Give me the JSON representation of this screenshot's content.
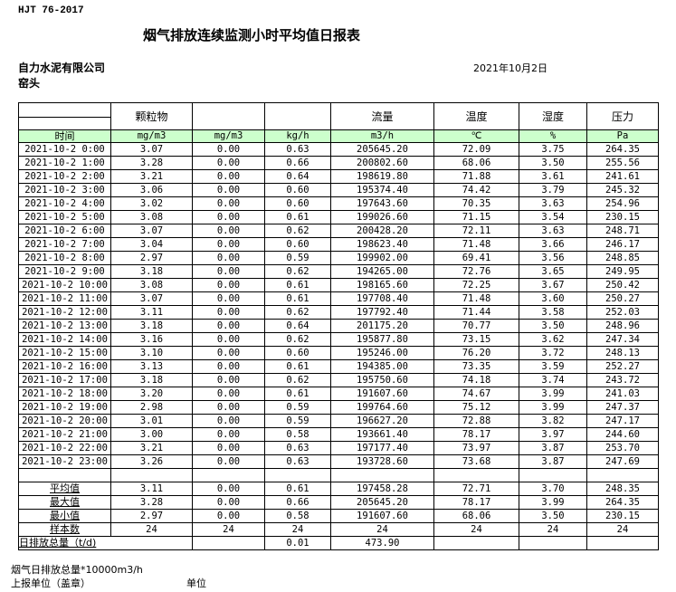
{
  "standard": "HJT  76-2017",
  "title": "烟气排放连续监测小时平均值日报表",
  "company": "自力水泥有限公司",
  "location": "窑头",
  "date": "2021年10月2日",
  "headers": [
    "",
    "颗粒物",
    "",
    "",
    "流量",
    "温度",
    "湿度",
    "压力"
  ],
  "units": [
    "时间",
    "mg/m3",
    "mg/m3",
    "kg/h",
    "m3/h",
    "℃",
    "%",
    "Pa"
  ],
  "rows": [
    [
      "2021-10-2 0:00",
      "3.07",
      "0.00",
      "0.63",
      "205645.20",
      "72.09",
      "3.75",
      "264.35"
    ],
    [
      "2021-10-2 1:00",
      "3.28",
      "0.00",
      "0.66",
      "200802.60",
      "68.06",
      "3.50",
      "255.56"
    ],
    [
      "2021-10-2 2:00",
      "3.21",
      "0.00",
      "0.64",
      "198619.80",
      "71.88",
      "3.61",
      "241.61"
    ],
    [
      "2021-10-2 3:00",
      "3.06",
      "0.00",
      "0.60",
      "195374.40",
      "74.42",
      "3.79",
      "245.32"
    ],
    [
      "2021-10-2 4:00",
      "3.02",
      "0.00",
      "0.60",
      "197643.60",
      "70.35",
      "3.63",
      "254.96"
    ],
    [
      "2021-10-2 5:00",
      "3.08",
      "0.00",
      "0.61",
      "199026.60",
      "71.15",
      "3.54",
      "230.15"
    ],
    [
      "2021-10-2 6:00",
      "3.07",
      "0.00",
      "0.62",
      "200428.20",
      "72.11",
      "3.63",
      "248.71"
    ],
    [
      "2021-10-2 7:00",
      "3.04",
      "0.00",
      "0.60",
      "198623.40",
      "71.48",
      "3.66",
      "246.17"
    ],
    [
      "2021-10-2 8:00",
      "2.97",
      "0.00",
      "0.59",
      "199902.00",
      "69.41",
      "3.56",
      "248.85"
    ],
    [
      "2021-10-2 9:00",
      "3.18",
      "0.00",
      "0.62",
      "194265.00",
      "72.76",
      "3.65",
      "249.95"
    ],
    [
      "2021-10-2 10:00",
      "3.08",
      "0.00",
      "0.61",
      "198165.60",
      "72.25",
      "3.67",
      "250.42"
    ],
    [
      "2021-10-2 11:00",
      "3.07",
      "0.00",
      "0.61",
      "197708.40",
      "71.48",
      "3.60",
      "250.27"
    ],
    [
      "2021-10-2 12:00",
      "3.11",
      "0.00",
      "0.62",
      "197792.40",
      "71.44",
      "3.58",
      "252.03"
    ],
    [
      "2021-10-2 13:00",
      "3.18",
      "0.00",
      "0.64",
      "201175.20",
      "70.77",
      "3.50",
      "248.96"
    ],
    [
      "2021-10-2 14:00",
      "3.16",
      "0.00",
      "0.62",
      "195877.80",
      "73.15",
      "3.62",
      "247.34"
    ],
    [
      "2021-10-2 15:00",
      "3.10",
      "0.00",
      "0.60",
      "195246.00",
      "76.20",
      "3.72",
      "248.13"
    ],
    [
      "2021-10-2 16:00",
      "3.13",
      "0.00",
      "0.61",
      "194385.00",
      "73.35",
      "3.59",
      "252.27"
    ],
    [
      "2021-10-2 17:00",
      "3.18",
      "0.00",
      "0.62",
      "195750.60",
      "74.18",
      "3.74",
      "243.72"
    ],
    [
      "2021-10-2 18:00",
      "3.20",
      "0.00",
      "0.61",
      "191607.60",
      "74.67",
      "3.99",
      "241.03"
    ],
    [
      "2021-10-2 19:00",
      "2.98",
      "0.00",
      "0.59",
      "199764.60",
      "75.12",
      "3.99",
      "247.37"
    ],
    [
      "2021-10-2 20:00",
      "3.01",
      "0.00",
      "0.59",
      "196627.20",
      "72.88",
      "3.82",
      "247.17"
    ],
    [
      "2021-10-2 21:00",
      "3.00",
      "0.00",
      "0.58",
      "193661.40",
      "78.17",
      "3.97",
      "244.60"
    ],
    [
      "2021-10-2 22:00",
      "3.21",
      "0.00",
      "0.63",
      "197177.40",
      "73.97",
      "3.87",
      "253.70"
    ],
    [
      "2021-10-2 23:00",
      "3.26",
      "0.00",
      "0.63",
      "193728.60",
      "73.68",
      "3.87",
      "247.69"
    ]
  ],
  "stats": [
    [
      "平均值",
      "3.11",
      "0.00",
      "0.61",
      "197458.28",
      "72.71",
      "3.70",
      "248.35"
    ],
    [
      "最大值",
      "3.28",
      "0.00",
      "0.66",
      "205645.20",
      "78.17",
      "3.99",
      "264.35"
    ],
    [
      "最小值",
      "2.97",
      "0.00",
      "0.58",
      "191607.60",
      "68.06",
      "3.50",
      "230.15"
    ],
    [
      "样本数",
      "24",
      "24",
      "24",
      "24",
      "24",
      "24",
      "24"
    ]
  ],
  "daily_total": {
    "label": "日排放总量（t/d)",
    "kg_h": "0.01",
    "flow": "473.90"
  },
  "footer": {
    "note": "烟气日排放总量*10000m3/h",
    "reporter": "上报单位（盖章）",
    "unit": "单位"
  }
}
